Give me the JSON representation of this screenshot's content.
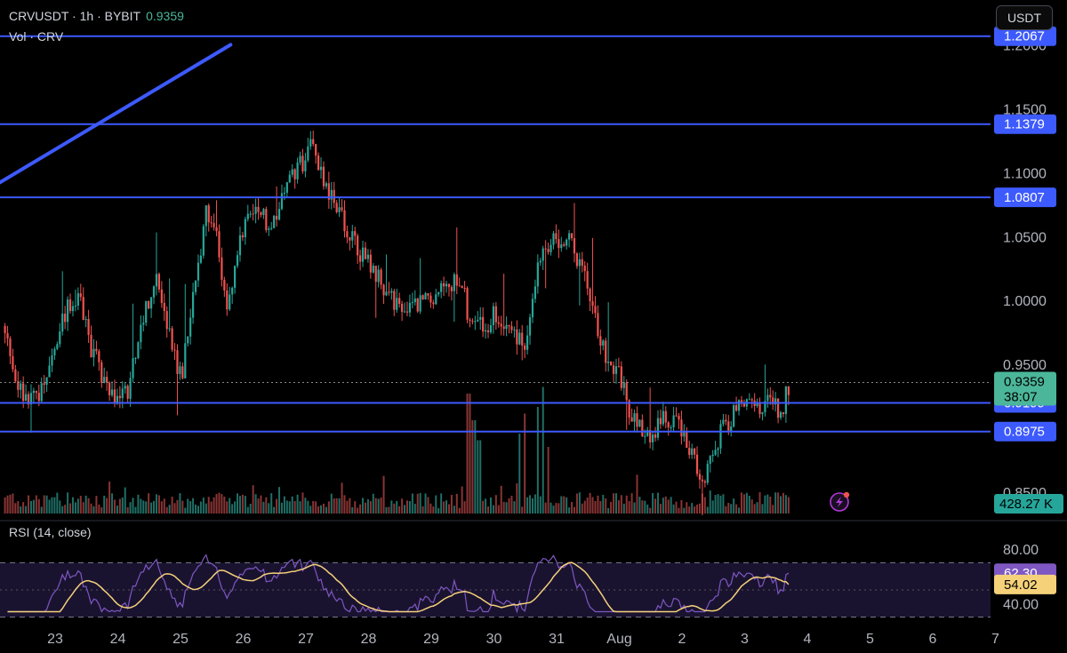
{
  "header": {
    "symbol": "CRVUSDT",
    "interval": "1h",
    "exchange": "BYBIT",
    "symbol_line": "CRVUSDT · 1h · BYBIT",
    "last_price": "0.9359",
    "volume_line": "Vol · CRV"
  },
  "currency_button": "USDT",
  "rsi_title": "RSI (14, close)",
  "colors": {
    "up": "#26a69a",
    "down": "#ef5350",
    "line": "#3d5afe",
    "rsi": "#7e57c2",
    "rsi_ma": "#f5d17a",
    "price_tag": "#4bb69a",
    "volume_tag": "#26a69a",
    "rsi_tag": "#7e57c2",
    "rsi_ma_tag": "#f5d17a"
  },
  "chart_data": [
    {
      "type": "candlestick",
      "title": "CRVUSDT · 1h · BYBIT",
      "x_ticks": [
        "23",
        "24",
        "25",
        "26",
        "27",
        "28",
        "29",
        "30",
        "31",
        "Aug",
        "2",
        "3",
        "4",
        "5",
        "6",
        "7"
      ],
      "y_ticks": [
        "1.2000",
        "1.1500",
        "1.1000",
        "1.0500",
        "1.0000",
        "0.9500",
        "0.8500"
      ],
      "ylim": [
        0.832,
        1.235
      ],
      "last_price": 0.9359,
      "countdown": "38:07",
      "horizontal_levels": [
        {
          "value": 1.2067,
          "label": "1.2067"
        },
        {
          "value": 1.1379,
          "label": "1.1379"
        },
        {
          "value": 1.0807,
          "label": "1.0807"
        },
        {
          "value": 0.9199,
          "label": "0.9199"
        },
        {
          "value": 0.8975,
          "label": "0.8975"
        }
      ],
      "trendline": {
        "from": {
          "x": 25.8,
          "y": 1.2
        },
        "to": {
          "x": 7.05,
          "y": 0.8855
        }
      },
      "price_path": [
        {
          "x": 22.2,
          "y": 0.98
        },
        {
          "x": 22.45,
          "y": 0.93
        },
        {
          "x": 22.8,
          "y": 0.925
        },
        {
          "x": 23.0,
          "y": 0.955
        },
        {
          "x": 23.2,
          "y": 0.99
        },
        {
          "x": 23.4,
          "y": 1.005
        },
        {
          "x": 23.6,
          "y": 0.965
        },
        {
          "x": 23.85,
          "y": 0.935
        },
        {
          "x": 24.0,
          "y": 0.92
        },
        {
          "x": 24.2,
          "y": 0.93
        },
        {
          "x": 24.4,
          "y": 0.98
        },
        {
          "x": 24.65,
          "y": 1.02
        },
        {
          "x": 24.9,
          "y": 0.965
        },
        {
          "x": 25.05,
          "y": 0.94
        },
        {
          "x": 25.3,
          "y": 1.02
        },
        {
          "x": 25.45,
          "y": 1.07
        },
        {
          "x": 25.6,
          "y": 1.06
        },
        {
          "x": 25.8,
          "y": 0.99
        },
        {
          "x": 26.0,
          "y": 1.05
        },
        {
          "x": 26.25,
          "y": 1.07
        },
        {
          "x": 26.5,
          "y": 1.06
        },
        {
          "x": 26.7,
          "y": 1.09
        },
        {
          "x": 26.9,
          "y": 1.1
        },
        {
          "x": 27.1,
          "y": 1.12
        },
        {
          "x": 27.3,
          "y": 1.1
        },
        {
          "x": 27.5,
          "y": 1.07
        },
        {
          "x": 27.8,
          "y": 1.05
        },
        {
          "x": 28.0,
          "y": 1.03
        },
        {
          "x": 28.3,
          "y": 1.01
        },
        {
          "x": 28.6,
          "y": 0.985
        },
        {
          "x": 28.9,
          "y": 1.0
        },
        {
          "x": 29.2,
          "y": 1.005
        },
        {
          "x": 29.5,
          "y": 1.02
        },
        {
          "x": 29.7,
          "y": 0.975
        },
        {
          "x": 29.9,
          "y": 0.98
        },
        {
          "x": 30.1,
          "y": 0.99
        },
        {
          "x": 30.3,
          "y": 0.975
        },
        {
          "x": 30.55,
          "y": 0.965
        },
        {
          "x": 30.8,
          "y": 1.04
        },
        {
          "x": 31.0,
          "y": 1.05
        },
        {
          "x": 31.2,
          "y": 1.05
        },
        {
          "x": 31.4,
          "y": 1.03
        },
        {
          "x": 31.6,
          "y": 1.0
        },
        {
          "x": 31.8,
          "y": 0.96
        },
        {
          "x": 32.0,
          "y": 0.945
        },
        {
          "x": 32.2,
          "y": 0.915
        },
        {
          "x": 32.4,
          "y": 0.9
        },
        {
          "x": 32.6,
          "y": 0.895
        },
        {
          "x": 32.8,
          "y": 0.91
        },
        {
          "x": 33.0,
          "y": 0.9
        },
        {
          "x": 33.2,
          "y": 0.88
        },
        {
          "x": 33.35,
          "y": 0.863
        },
        {
          "x": 33.5,
          "y": 0.87
        },
        {
          "x": 33.65,
          "y": 0.9
        },
        {
          "x": 33.85,
          "y": 0.91
        },
        {
          "x": 34.0,
          "y": 0.918
        },
        {
          "x": 34.2,
          "y": 0.915
        },
        {
          "x": 34.4,
          "y": 0.925
        },
        {
          "x": 34.55,
          "y": 0.92
        },
        {
          "x": 34.65,
          "y": 0.905
        },
        {
          "x": 34.7,
          "y": 0.935
        }
      ],
      "volume_label": "428.27 K",
      "volume_spikes": [
        {
          "x": 29.6,
          "v": 0.9
        },
        {
          "x": 29.68,
          "v": 0.7
        },
        {
          "x": 29.76,
          "v": 0.55
        },
        {
          "x": 30.4,
          "v": 0.6
        },
        {
          "x": 30.48,
          "v": 0.75
        },
        {
          "x": 30.7,
          "v": 0.8
        },
        {
          "x": 30.78,
          "v": 0.95
        },
        {
          "x": 30.86,
          "v": 0.5
        }
      ]
    },
    {
      "type": "line",
      "title": "RSI (14, close)",
      "y_ticks": [
        "80.00",
        "40.00"
      ],
      "ylim": [
        33,
        84
      ],
      "bands": [
        30,
        70
      ],
      "rsi_value": 62.3,
      "rsi_label": "62.30",
      "ma_value": 54.02,
      "ma_label": "54.02"
    }
  ]
}
